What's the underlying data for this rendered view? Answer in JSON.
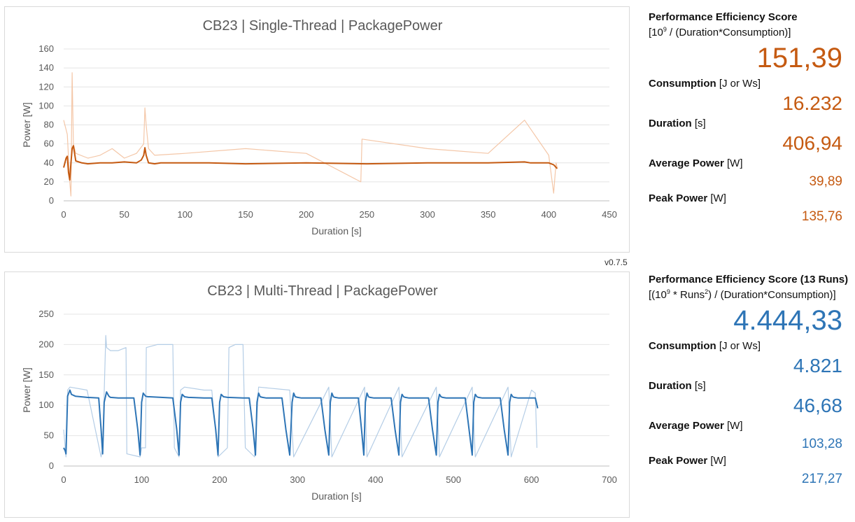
{
  "version": "v0.7.5",
  "colors": {
    "single": "#c55a11",
    "single_light": "#f4c7a8",
    "multi": "#2e75b6",
    "multi_light": "#b4cde6"
  },
  "chart_data": [
    {
      "type": "line",
      "title": "CB23 | Single-Thread | PackagePower",
      "xlabel": "Duration [s]",
      "ylabel": "Power [W]",
      "xlim": [
        0,
        450
      ],
      "ylim": [
        0,
        160
      ],
      "xticks": [
        0,
        50,
        100,
        150,
        200,
        250,
        300,
        350,
        400,
        450
      ],
      "yticks": [
        0,
        20,
        40,
        60,
        80,
        100,
        120,
        140,
        160
      ],
      "grid": true,
      "series": [
        {
          "x": [
            0,
            2,
            3,
            4,
            5,
            6,
            7,
            8,
            10,
            15,
            20,
            30,
            40,
            50,
            60,
            64,
            66,
            67,
            68,
            70,
            75,
            80,
            100,
            120,
            150,
            200,
            250,
            300,
            350,
            380,
            385,
            400,
            404,
            406.94
          ],
          "y": [
            35,
            45,
            47,
            30,
            22,
            40,
            55,
            58,
            42,
            40,
            39,
            40,
            40,
            41,
            40,
            43,
            48,
            56,
            48,
            40,
            39,
            40,
            40,
            40,
            39,
            40,
            39,
            40,
            40,
            41,
            40,
            40,
            38,
            34
          ]
        },
        {
          "x": [
            0,
            3,
            5,
            6,
            7,
            8,
            10,
            20,
            30,
            40,
            50,
            60,
            66,
            67,
            68,
            70,
            75,
            100,
            150,
            200,
            245,
            246,
            300,
            350,
            380,
            400,
            404,
            406,
            406.94
          ],
          "y": [
            85,
            70,
            20,
            5,
            135,
            60,
            50,
            45,
            48,
            55,
            45,
            50,
            60,
            98,
            80,
            55,
            48,
            50,
            55,
            50,
            20,
            65,
            55,
            50,
            85,
            48,
            8,
            40,
            35
          ]
        }
      ]
    },
    {
      "type": "line",
      "title": "CB23 | Multi-Thread | PackagePower",
      "xlabel": "Duration [s]",
      "ylabel": "Power [W]",
      "xlim": [
        0,
        700
      ],
      "ylim": [
        0,
        250
      ],
      "xticks": [
        0,
        100,
        200,
        300,
        400,
        500,
        600,
        700
      ],
      "yticks": [
        0,
        50,
        100,
        150,
        200,
        250
      ],
      "grid": true,
      "series": [
        {
          "x": [
            0,
            2,
            3,
            5,
            8,
            10,
            15,
            30,
            45,
            48,
            50,
            52,
            55,
            58,
            60,
            70,
            90,
            95,
            98,
            100,
            102,
            105,
            108,
            110,
            125,
            140,
            145,
            148,
            150,
            152,
            155,
            160,
            180,
            190,
            195,
            198,
            200,
            202,
            205,
            210,
            230,
            238,
            243,
            246,
            248,
            250,
            252,
            255,
            260,
            280,
            285,
            290,
            293,
            295,
            297,
            300,
            305,
            330,
            335,
            340,
            342,
            344,
            346,
            348,
            353,
            378,
            382,
            385,
            387,
            389,
            391,
            393,
            398,
            420,
            425,
            430,
            432,
            434,
            436,
            438,
            443,
            468,
            473,
            478,
            480,
            482,
            484,
            486,
            491,
            515,
            520,
            524,
            526,
            528,
            530,
            532,
            537,
            560,
            565,
            570,
            572,
            574,
            576,
            578,
            583,
            605,
            608
          ],
          "y": [
            30,
            25,
            20,
            115,
            125,
            118,
            115,
            113,
            112,
            60,
            20,
            105,
            122,
            115,
            113,
            112,
            112,
            60,
            18,
            105,
            120,
            115,
            114,
            114,
            113,
            112,
            60,
            18,
            105,
            118,
            114,
            113,
            112,
            112,
            60,
            18,
            105,
            118,
            114,
            113,
            112,
            112,
            60,
            18,
            105,
            120,
            114,
            113,
            112,
            112,
            60,
            18,
            105,
            120,
            114,
            113,
            112,
            112,
            60,
            18,
            105,
            120,
            114,
            113,
            112,
            112,
            60,
            18,
            105,
            120,
            114,
            113,
            112,
            112,
            60,
            18,
            105,
            118,
            114,
            113,
            112,
            112,
            60,
            18,
            105,
            118,
            114,
            113,
            112,
            112,
            60,
            18,
            105,
            118,
            114,
            113,
            112,
            112,
            60,
            18,
            105,
            118,
            114,
            113,
            112,
            112,
            95
          ]
        },
        {
          "x": [
            0,
            3,
            5,
            8,
            30,
            48,
            50,
            54,
            55,
            60,
            70,
            80,
            81,
            98,
            100,
            105,
            106,
            120,
            140,
            142,
            148,
            150,
            155,
            180,
            190,
            198,
            210,
            212,
            220,
            230,
            233,
            245,
            250,
            290,
            295,
            340,
            344,
            386,
            389,
            430,
            434,
            478,
            482,
            524,
            528,
            570,
            574,
            600,
            605,
            607
          ],
          "y": [
            60,
            15,
            125,
            130,
            125,
            15,
            30,
            215,
            195,
            190,
            190,
            195,
            20,
            15,
            30,
            30,
            195,
            200,
            200,
            30,
            15,
            125,
            130,
            125,
            125,
            15,
            30,
            195,
            200,
            200,
            30,
            15,
            130,
            125,
            15,
            130,
            15,
            130,
            15,
            130,
            15,
            130,
            15,
            130,
            15,
            130,
            15,
            125,
            120,
            30
          ]
        }
      ]
    }
  ],
  "stats_single": {
    "score_label": "Performance Efficiency Score",
    "score_formula": "[10^9 / (Duration*Consumption)]",
    "score_value": "151,39",
    "consumption_label": "Consumption",
    "consumption_unit": "[J or Ws]",
    "consumption_value": "16.232",
    "duration_label": "Duration",
    "duration_unit": "[s]",
    "duration_value": "406,94",
    "avg_label": "Average Power",
    "avg_unit": "[W]",
    "avg_value": "39,89",
    "peak_label": "Peak Power",
    "peak_unit": "[W]",
    "peak_value": "135,76"
  },
  "stats_multi": {
    "score_label": "Performance Efficiency Score (13 Runs)",
    "score_formula": "[(10^9 * Runs^2) / (Duration*Consumption)]",
    "score_value": "4.444,33",
    "consumption_label": "Consumption",
    "consumption_unit": "[J or Ws]",
    "consumption_value": "4.821",
    "duration_label": "Duration",
    "duration_unit": "[s]",
    "duration_value": "46,68",
    "avg_label": "Average Power",
    "avg_unit": "[W]",
    "avg_value": "103,28",
    "peak_label": "Peak Power",
    "peak_unit": "[W]",
    "peak_value": "217,27"
  }
}
